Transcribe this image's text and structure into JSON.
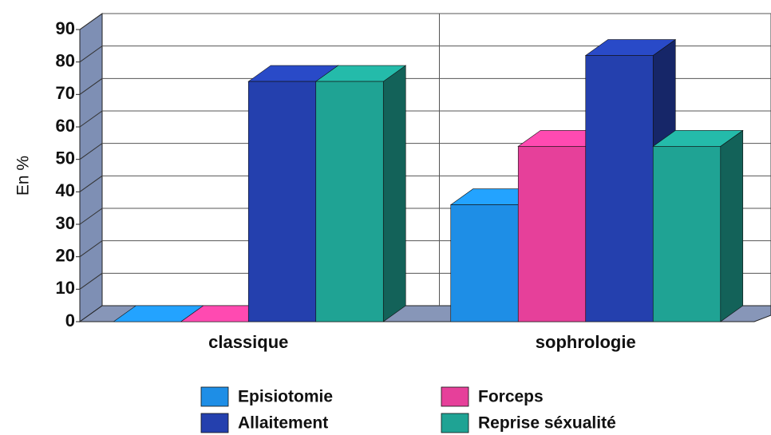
{
  "chart_data": {
    "type": "bar3d",
    "y_label": "En %",
    "categories": [
      "classique",
      "sophrologie"
    ],
    "series": [
      {
        "name": "Episiotomie",
        "color": "#1e8ee6",
        "values": [
          0,
          36
        ]
      },
      {
        "name": "Forceps",
        "color": "#e6409a",
        "values": [
          0,
          54
        ]
      },
      {
        "name": "Allaitement",
        "color": "#2440ae",
        "values": [
          74,
          82
        ]
      },
      {
        "name": "Reprise séxualité",
        "color": "#1fa394",
        "values": [
          74,
          54
        ]
      }
    ],
    "ylim": [
      0,
      90
    ],
    "yticks": [
      0,
      10,
      20,
      30,
      40,
      50,
      60,
      70,
      80,
      90
    ],
    "grid": true
  }
}
